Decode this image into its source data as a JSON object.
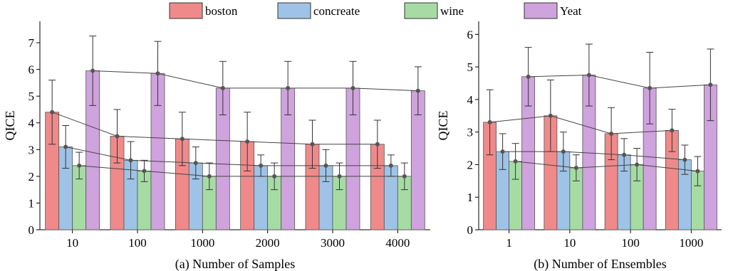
{
  "legend": [
    {
      "name": "boston",
      "color": "#f08a8a"
    },
    {
      "name": "concreate",
      "color": "#9fc3e6"
    },
    {
      "name": "wine",
      "color": "#a6dca4"
    },
    {
      "name": "Yeat",
      "color": "#cfa3dd"
    }
  ],
  "chart_data": [
    {
      "type": "bar",
      "title": "(a) Number of Samples",
      "xlabel": "(a) Number of Samples",
      "ylabel": "QICE",
      "categories": [
        "10",
        "100",
        "1000",
        "2000",
        "3000",
        "4000"
      ],
      "ylim": [
        0,
        7.8
      ],
      "yticks": [
        0,
        1,
        2,
        3,
        4,
        5,
        6,
        7
      ],
      "error_bars": true,
      "trend_lines": true,
      "series": [
        {
          "name": "boston",
          "values": [
            4.4,
            3.5,
            3.4,
            3.3,
            3.2,
            3.2
          ],
          "errors": [
            1.2,
            1.0,
            1.0,
            1.1,
            0.9,
            0.9
          ]
        },
        {
          "name": "concreate",
          "values": [
            3.1,
            2.6,
            2.5,
            2.4,
            2.4,
            2.4
          ],
          "errors": [
            0.8,
            0.7,
            0.6,
            0.4,
            0.6,
            0.4
          ]
        },
        {
          "name": "wine",
          "values": [
            2.4,
            2.2,
            2.0,
            2.0,
            2.0,
            2.0
          ],
          "errors": [
            0.5,
            0.4,
            0.5,
            0.5,
            0.5,
            0.5
          ]
        },
        {
          "name": "Yeat",
          "values": [
            5.95,
            5.85,
            5.3,
            5.3,
            5.3,
            5.2
          ],
          "errors": [
            1.3,
            1.2,
            1.0,
            1.0,
            1.0,
            0.9
          ]
        }
      ]
    },
    {
      "type": "bar",
      "title": "(b) Number of Ensembles",
      "xlabel": "(b) Number of Ensembles",
      "ylabel": "QICE",
      "categories": [
        "1",
        "10",
        "100",
        "1000"
      ],
      "ylim": [
        0,
        6.4
      ],
      "yticks": [
        0,
        1,
        2,
        3,
        4,
        5,
        6
      ],
      "error_bars": true,
      "trend_lines": true,
      "series": [
        {
          "name": "boston",
          "values": [
            3.3,
            3.5,
            2.95,
            3.05
          ],
          "errors": [
            1.0,
            1.1,
            0.8,
            0.65
          ]
        },
        {
          "name": "concreate",
          "values": [
            2.4,
            2.4,
            2.3,
            2.15
          ],
          "errors": [
            0.55,
            0.6,
            0.5,
            0.45
          ]
        },
        {
          "name": "wine",
          "values": [
            2.1,
            1.9,
            2.0,
            1.8
          ],
          "errors": [
            0.55,
            0.4,
            0.5,
            0.45
          ]
        },
        {
          "name": "Yeat",
          "values": [
            4.7,
            4.75,
            4.35,
            4.45
          ],
          "errors": [
            0.9,
            0.95,
            1.1,
            1.1
          ]
        }
      ]
    }
  ]
}
